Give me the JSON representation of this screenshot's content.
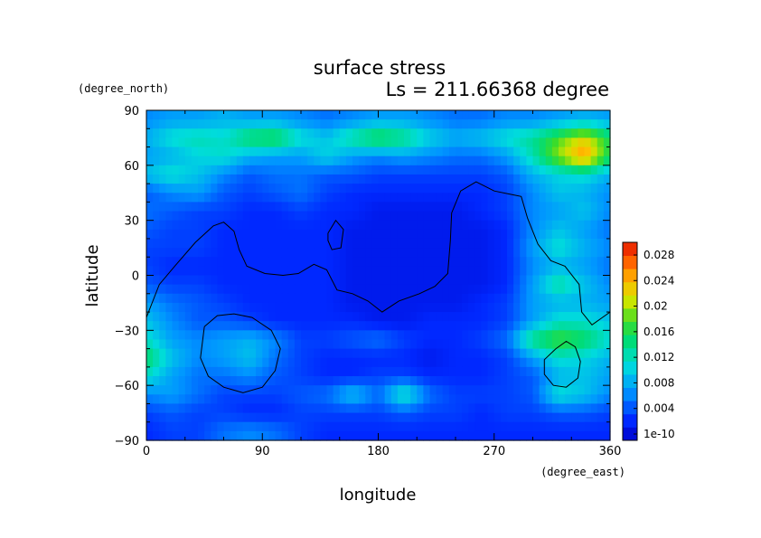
{
  "chart_data": {
    "type": "heatmap",
    "title": "surface stress",
    "subtitle": "Ls = 211.66368 degree",
    "xlabel": "longitude",
    "ylabel": "latitude",
    "x_unit": "(degree_east)",
    "y_unit": "(degree_north)",
    "xlim": [
      0,
      360
    ],
    "ylim": [
      -90,
      90
    ],
    "x_ticks": [
      "0",
      "90",
      "180",
      "270",
      "360"
    ],
    "y_ticks": [
      "90",
      "60",
      "30",
      "0",
      "−30",
      "−60",
      "−90"
    ],
    "colorbar": {
      "min": 1e-10,
      "max": 0.03,
      "ticks": [
        "1e-10",
        "0.004",
        "0.008",
        "0.012",
        "0.016",
        "0.02",
        "0.024",
        "0.028"
      ],
      "tick_values": [
        0,
        0.004,
        0.008,
        0.012,
        0.016,
        0.02,
        0.024,
        0.028
      ],
      "colormap": "rainbow"
    },
    "field_lon": [
      0,
      20,
      40,
      60,
      80,
      100,
      120,
      140,
      160,
      180,
      200,
      220,
      240,
      260,
      280,
      300,
      320,
      340,
      360
    ],
    "field_lat": [
      85,
      75,
      65,
      55,
      45,
      35,
      25,
      15,
      5,
      -5,
      -15,
      -25,
      -35,
      -45,
      -55,
      -65,
      -75,
      -85
    ],
    "field_values": [
      [
        0.007,
        0.008,
        0.008,
        0.009,
        0.008,
        0.008,
        0.007,
        0.006,
        0.007,
        0.008,
        0.008,
        0.007,
        0.006,
        0.006,
        0.007,
        0.007,
        0.008,
        0.009,
        0.008
      ],
      [
        0.009,
        0.012,
        0.013,
        0.012,
        0.016,
        0.017,
        0.012,
        0.01,
        0.014,
        0.017,
        0.015,
        0.011,
        0.009,
        0.01,
        0.012,
        0.014,
        0.018,
        0.022,
        0.016
      ],
      [
        0.008,
        0.009,
        0.011,
        0.012,
        0.009,
        0.008,
        0.008,
        0.011,
        0.008,
        0.007,
        0.008,
        0.007,
        0.006,
        0.006,
        0.008,
        0.013,
        0.02,
        0.026,
        0.016
      ],
      [
        0.01,
        0.012,
        0.01,
        0.007,
        0.005,
        0.006,
        0.006,
        0.005,
        0.005,
        0.004,
        0.004,
        0.004,
        0.004,
        0.004,
        0.005,
        0.009,
        0.011,
        0.012,
        0.009
      ],
      [
        0.005,
        0.007,
        0.008,
        0.005,
        0.004,
        0.005,
        0.006,
        0.004,
        0.003,
        0.003,
        0.003,
        0.003,
        0.003,
        0.003,
        0.004,
        0.007,
        0.01,
        0.009,
        0.007
      ],
      [
        0.006,
        0.005,
        0.004,
        0.004,
        0.003,
        0.003,
        0.004,
        0.003,
        0.003,
        0.002,
        0.002,
        0.002,
        0.002,
        0.003,
        0.004,
        0.007,
        0.008,
        0.01,
        0.007
      ],
      [
        0.005,
        0.004,
        0.004,
        0.003,
        0.003,
        0.003,
        0.003,
        0.003,
        0.002,
        0.002,
        0.002,
        0.002,
        0.002,
        0.002,
        0.003,
        0.007,
        0.01,
        0.008,
        0.006
      ],
      [
        0.004,
        0.004,
        0.004,
        0.003,
        0.003,
        0.003,
        0.003,
        0.003,
        0.002,
        0.002,
        0.002,
        0.002,
        0.002,
        0.002,
        0.003,
        0.008,
        0.012,
        0.009,
        0.007
      ],
      [
        0.004,
        0.003,
        0.003,
        0.003,
        0.003,
        0.003,
        0.003,
        0.003,
        0.002,
        0.002,
        0.002,
        0.002,
        0.002,
        0.002,
        0.003,
        0.007,
        0.009,
        0.008,
        0.006
      ],
      [
        0.005,
        0.004,
        0.004,
        0.003,
        0.003,
        0.003,
        0.003,
        0.003,
        0.002,
        0.002,
        0.002,
        0.002,
        0.002,
        0.002,
        0.003,
        0.008,
        0.014,
        0.01,
        0.007
      ],
      [
        0.008,
        0.006,
        0.005,
        0.004,
        0.003,
        0.003,
        0.003,
        0.003,
        0.002,
        0.002,
        0.002,
        0.002,
        0.002,
        0.003,
        0.004,
        0.008,
        0.009,
        0.009,
        0.008
      ],
      [
        0.01,
        0.007,
        0.005,
        0.005,
        0.004,
        0.003,
        0.003,
        0.003,
        0.003,
        0.002,
        0.002,
        0.003,
        0.003,
        0.003,
        0.004,
        0.008,
        0.012,
        0.012,
        0.01
      ],
      [
        0.012,
        0.008,
        0.007,
        0.008,
        0.009,
        0.007,
        0.004,
        0.004,
        0.005,
        0.006,
        0.004,
        0.003,
        0.003,
        0.004,
        0.006,
        0.015,
        0.018,
        0.016,
        0.012
      ],
      [
        0.016,
        0.01,
        0.007,
        0.008,
        0.01,
        0.006,
        0.004,
        0.003,
        0.003,
        0.003,
        0.003,
        0.002,
        0.003,
        0.003,
        0.004,
        0.008,
        0.012,
        0.011,
        0.009
      ],
      [
        0.012,
        0.008,
        0.006,
        0.006,
        0.007,
        0.005,
        0.004,
        0.003,
        0.003,
        0.004,
        0.004,
        0.003,
        0.003,
        0.003,
        0.004,
        0.005,
        0.009,
        0.01,
        0.008
      ],
      [
        0.007,
        0.008,
        0.006,
        0.004,
        0.004,
        0.004,
        0.005,
        0.006,
        0.01,
        0.006,
        0.013,
        0.006,
        0.004,
        0.004,
        0.004,
        0.005,
        0.012,
        0.01,
        0.007
      ],
      [
        0.004,
        0.005,
        0.004,
        0.004,
        0.003,
        0.003,
        0.004,
        0.004,
        0.004,
        0.004,
        0.005,
        0.004,
        0.004,
        0.003,
        0.004,
        0.004,
        0.005,
        0.005,
        0.004
      ],
      [
        0.003,
        0.004,
        0.004,
        0.006,
        0.007,
        0.006,
        0.004,
        0.003,
        0.003,
        0.003,
        0.003,
        0.003,
        0.003,
        0.003,
        0.003,
        0.003,
        0.003,
        0.003,
        0.003
      ]
    ],
    "coastlines": [
      [
        [
          0,
          -23
        ],
        [
          10,
          -5
        ],
        [
          22,
          5
        ],
        [
          38,
          18
        ],
        [
          52,
          27
        ],
        [
          60,
          29
        ],
        [
          68,
          24
        ],
        [
          72,
          14
        ],
        [
          78,
          5
        ],
        [
          92,
          1
        ],
        [
          106,
          0
        ],
        [
          118,
          1
        ],
        [
          130,
          6
        ],
        [
          140,
          3
        ],
        [
          148,
          -8
        ],
        [
          160,
          -10
        ],
        [
          172,
          -14
        ],
        [
          183,
          -20
        ],
        [
          196,
          -14
        ],
        [
          212,
          -10
        ],
        [
          224,
          -6
        ],
        [
          234,
          1
        ],
        [
          236,
          19
        ],
        [
          237,
          34
        ],
        [
          244,
          46
        ],
        [
          256,
          51
        ],
        [
          270,
          46
        ],
        [
          284,
          44
        ],
        [
          291,
          43
        ],
        [
          296,
          31
        ],
        [
          304,
          17
        ],
        [
          314,
          8
        ],
        [
          325,
          5
        ],
        [
          336,
          -5
        ],
        [
          338,
          -20
        ],
        [
          346,
          -27
        ],
        [
          360,
          -20
        ]
      ],
      [
        [
          141,
          23
        ],
        [
          147,
          30
        ],
        [
          153,
          25
        ],
        [
          151,
          15
        ],
        [
          144,
          14
        ],
        [
          141,
          19
        ],
        [
          141,
          23
        ]
      ],
      [
        [
          45,
          -28
        ],
        [
          55,
          -22
        ],
        [
          68,
          -21
        ],
        [
          82,
          -23
        ],
        [
          97,
          -30
        ],
        [
          104,
          -40
        ],
        [
          100,
          -52
        ],
        [
          90,
          -61
        ],
        [
          75,
          -64
        ],
        [
          60,
          -61
        ],
        [
          48,
          -55
        ],
        [
          42,
          -45
        ],
        [
          45,
          -28
        ]
      ],
      [
        [
          318,
          -40
        ],
        [
          326,
          -36
        ],
        [
          333,
          -39
        ],
        [
          337,
          -47
        ],
        [
          335,
          -56
        ],
        [
          326,
          -61
        ],
        [
          316,
          -60
        ],
        [
          309,
          -54
        ],
        [
          309,
          -46
        ],
        [
          318,
          -40
        ]
      ]
    ]
  }
}
